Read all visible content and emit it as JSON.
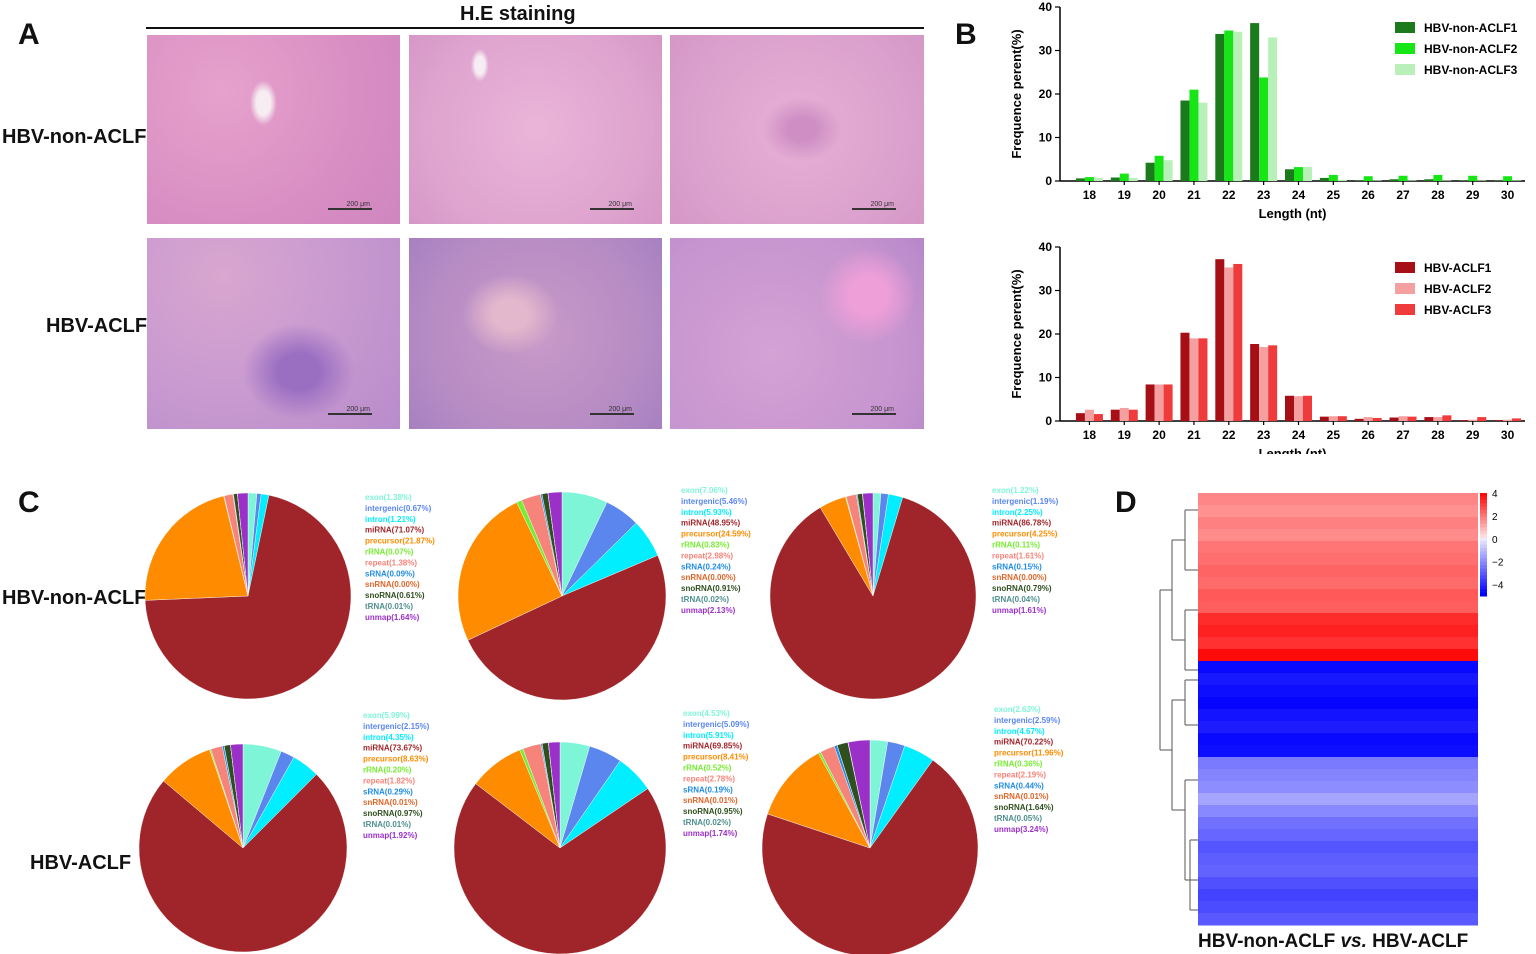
{
  "panels": {
    "A": {
      "letter": "A",
      "title": "H.E staining",
      "row_labels": [
        "HBV-non-ACLF",
        "HBV-ACLF"
      ],
      "scale_bar": "200 μm"
    },
    "B": {
      "letter": "B"
    },
    "C": {
      "letter": "C",
      "row_labels": [
        "HBV-non-ACLF",
        "HBV-ACLF"
      ],
      "categories": [
        "exon",
        "intergenic",
        "intron",
        "miRNA",
        "precursor",
        "rRNA",
        "repeat",
        "sRNA",
        "snRNA",
        "snoRNA",
        "tRNA",
        "unmap"
      ],
      "colors": [
        "#7ff5d8",
        "#5b86ee",
        "#00eeff",
        "#a0252a",
        "#ff8c00",
        "#77ee33",
        "#f7847a",
        "#1f8ce6",
        "#e0662a",
        "#2f4f1f",
        "#4f8f8f",
        "#9b30c8"
      ],
      "pies": [
        {
          "labels": [
            "exon(1.38%)",
            "intergenic(0.67%)",
            "intron(1.21%)",
            "miRNA(71.07%)",
            "precursor(21.87%)",
            "rRNA(0.07%)",
            "repeat(1.38%)",
            "sRNA(0.09%)",
            "snRNA(0.00%)",
            "snoRNA(0.61%)",
            "tRNA(0.01%)",
            "unmap(1.64%)"
          ],
          "values": [
            1.38,
            0.67,
            1.21,
            71.07,
            21.87,
            0.07,
            1.38,
            0.09,
            0.0,
            0.61,
            0.01,
            1.64
          ]
        },
        {
          "labels": [
            "exon(7.06%)",
            "intergenic(5.46%)",
            "intron(5.93%)",
            "miRNA(48.95%)",
            "precursor(24.59%)",
            "rRNA(0.83%)",
            "repeat(2.98%)",
            "sRNA(0.24%)",
            "snRNA(0.00%)",
            "snoRNA(0.91%)",
            "tRNA(0.02%)",
            "unmap(2.13%)"
          ],
          "values": [
            7.06,
            5.46,
            5.93,
            48.95,
            24.59,
            0.83,
            2.98,
            0.24,
            0.0,
            0.91,
            0.02,
            2.13
          ]
        },
        {
          "labels": [
            "exon(1.22%)",
            "intergenic(1.19%)",
            "intron(2.25%)",
            "miRNA(86.78%)",
            "precursor(4.25%)",
            "rRNA(0.11%)",
            "repeat(1.61%)",
            "sRNA(0.15%)",
            "snRNA(0.00%)",
            "snoRNA(0.79%)",
            "tRNA(0.04%)",
            "unmap(1.61%)"
          ],
          "values": [
            1.22,
            1.19,
            2.25,
            86.78,
            4.25,
            0.11,
            1.61,
            0.15,
            0.0,
            0.79,
            0.04,
            1.61
          ]
        },
        {
          "labels": [
            "exon(5.99%)",
            "intergenic(2.15%)",
            "intron(4.35%)",
            "miRNA(73.67%)",
            "precursor(8.63%)",
            "rRNA(0.20%)",
            "repeat(1.82%)",
            "sRNA(0.29%)",
            "snRNA(0.01%)",
            "snoRNA(0.97%)",
            "tRNA(0.01%)",
            "unmap(1.92%)"
          ],
          "values": [
            5.99,
            2.15,
            4.35,
            73.67,
            8.63,
            0.2,
            1.82,
            0.29,
            0.01,
            0.97,
            0.01,
            1.92
          ]
        },
        {
          "labels": [
            "exon(4.53%)",
            "intergenic(5.09%)",
            "intron(5.91%)",
            "miRNA(69.85%)",
            "precursor(8.41%)",
            "rRNA(0.52%)",
            "repeat(2.78%)",
            "sRNA(0.19%)",
            "snRNA(0.01%)",
            "snoRNA(0.95%)",
            "tRNA(0.02%)",
            "unmap(1.74%)"
          ],
          "values": [
            4.53,
            5.09,
            5.91,
            69.85,
            8.41,
            0.52,
            2.78,
            0.19,
            0.01,
            0.95,
            0.02,
            1.74
          ]
        },
        {
          "labels": [
            "exon(2.63%)",
            "intergenic(2.59%)",
            "intron(4.67%)",
            "miRNA(70.22%)",
            "precursor(11.96%)",
            "rRNA(0.36%)",
            "repeat(2.19%)",
            "sRNA(0.44%)",
            "snRNA(0.01%)",
            "snoRNA(1.64%)",
            "tRNA(0.05%)",
            "unmap(3.24%)"
          ],
          "values": [
            2.63,
            2.59,
            4.67,
            70.22,
            11.96,
            0.36,
            2.19,
            0.44,
            0.01,
            1.64,
            0.05,
            3.24
          ]
        }
      ]
    },
    "D": {
      "letter": "D",
      "caption_a": "HBV-non-ACLF ",
      "caption_vs": "vs.",
      "caption_b": " HBV-ACLF"
    }
  },
  "chart_data": [
    {
      "type": "bar",
      "title": "",
      "xlabel": "Length (nt)",
      "ylabel": "Frequence perent(%)",
      "ylim": [
        0,
        40
      ],
      "yticks": [
        "0",
        "10",
        "20",
        "30",
        "40"
      ],
      "categories": [
        "18",
        "19",
        "20",
        "21",
        "22",
        "23",
        "24",
        "25",
        "26",
        "27",
        "28",
        "29",
        "30"
      ],
      "colors": [
        "#1b7a1b",
        "#16e516",
        "#b9f0b9"
      ],
      "series": [
        {
          "name": "HBV-non-ACLF1",
          "values": [
            0.6,
            0.8,
            4.2,
            18.5,
            33.8,
            36.3,
            2.7,
            0.7,
            0.1,
            0.4,
            0.4,
            0.1,
            0.1
          ]
        },
        {
          "name": "HBV-non-ACLF2",
          "values": [
            0.9,
            1.7,
            5.8,
            21.0,
            34.6,
            23.8,
            3.2,
            1.4,
            1.1,
            1.2,
            1.4,
            1.2,
            1.1
          ]
        },
        {
          "name": "HBV-non-ACLF3",
          "values": [
            0.7,
            0.7,
            4.8,
            18.0,
            34.3,
            33.0,
            3.2,
            0.3,
            0.1,
            0.1,
            0.1,
            0.1,
            0.1
          ]
        }
      ]
    },
    {
      "type": "bar",
      "title": "",
      "xlabel": "Length (nt)",
      "ylabel": "Frequence perent(%)",
      "ylim": [
        0,
        40
      ],
      "yticks": [
        "0",
        "10",
        "20",
        "30",
        "40"
      ],
      "categories": [
        "18",
        "19",
        "20",
        "21",
        "22",
        "23",
        "24",
        "25",
        "26",
        "27",
        "28",
        "29",
        "30"
      ],
      "colors": [
        "#a50f15",
        "#f4a0a0",
        "#ef3b3b"
      ],
      "series": [
        {
          "name": "HBV-ACLF1",
          "values": [
            1.8,
            2.6,
            8.4,
            20.3,
            37.2,
            17.7,
            5.8,
            1.0,
            0.5,
            0.8,
            0.9,
            0.2,
            0.2
          ]
        },
        {
          "name": "HBV-ACLF2",
          "values": [
            2.6,
            3.0,
            8.4,
            19.0,
            35.3,
            17.0,
            5.7,
            1.1,
            0.9,
            1.1,
            0.9,
            0.3,
            0.3
          ]
        },
        {
          "name": "HBV-ACLF3",
          "values": [
            1.6,
            2.6,
            8.4,
            19.0,
            36.1,
            17.4,
            5.8,
            1.1,
            0.7,
            1.0,
            1.3,
            0.9,
            0.6
          ]
        }
      ]
    },
    {
      "type": "heatmap",
      "title": "",
      "colorbar_ticks": [
        "4",
        "2",
        "0",
        "−2",
        "−4"
      ],
      "colorbar_range": [
        -5,
        4
      ],
      "row_values": [
        1.8,
        1.6,
        1.9,
        1.7,
        2.1,
        2.2,
        2.4,
        2.3,
        2.6,
        2.5,
        3.4,
        3.6,
        3.3,
        4.0,
        -4.8,
        -4.5,
        -4.7,
        -4.9,
        -4.6,
        -4.4,
        -4.8,
        -4.7,
        -2.4,
        -2.2,
        -2.0,
        -1.5,
        -2.1,
        -2.6,
        -2.8,
        -3.2,
        -3.0,
        -2.9,
        -3.3,
        -3.6,
        -3.4,
        -3.1
      ]
    }
  ]
}
